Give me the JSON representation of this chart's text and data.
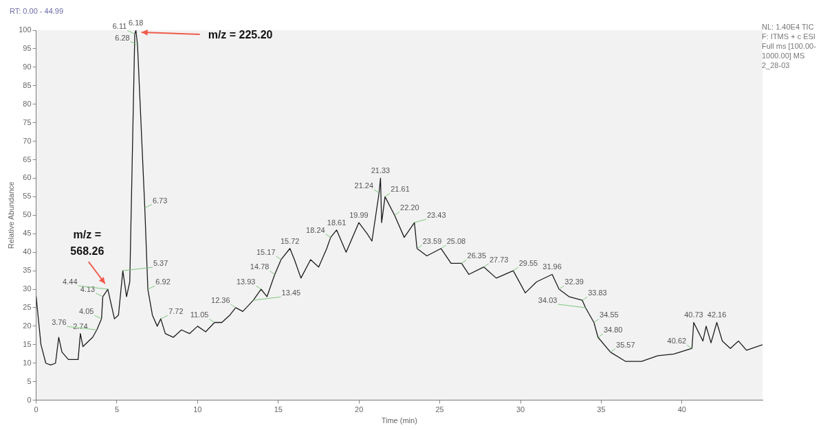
{
  "chart_data": {
    "type": "line",
    "xlabel": "Time (min)",
    "ylabel": "Relative Abundance",
    "xlim": [
      0,
      44.99
    ],
    "xticks": [
      0,
      5,
      10,
      15,
      20,
      25,
      30,
      35,
      40
    ],
    "ylim": [
      0,
      100
    ],
    "yticks": [
      0,
      5,
      10,
      15,
      20,
      25,
      30,
      35,
      40,
      45,
      50,
      55,
      60,
      65,
      70,
      75,
      80,
      85,
      90,
      95,
      100
    ],
    "grid": false,
    "legend": false,
    "marker": "none",
    "line_style": "solid",
    "series": [
      {
        "color": "#1a1a1a",
        "x": [
          0,
          0.3,
          0.6,
          0.9,
          1.2,
          1.4,
          1.6,
          2.0,
          2.6,
          2.74,
          2.9,
          3.5,
          3.76,
          4.05,
          4.13,
          4.44,
          4.85,
          5.1,
          5.37,
          5.6,
          5.8,
          6.11,
          6.18,
          6.28,
          6.73,
          6.92,
          7.2,
          7.5,
          7.72,
          8.0,
          8.5,
          9.0,
          9.5,
          10.0,
          10.5,
          11.05,
          11.5,
          12.0,
          12.36,
          12.8,
          13.45,
          13.93,
          14.3,
          14.78,
          15.17,
          15.72,
          16.0,
          16.4,
          17.0,
          17.5,
          18.0,
          18.24,
          18.61,
          19.2,
          19.99,
          20.5,
          20.8,
          21.24,
          21.33,
          21.4,
          21.61,
          22.2,
          22.8,
          23.43,
          23.59,
          24.2,
          25.08,
          25.7,
          26.35,
          26.8,
          27.73,
          28.5,
          29.55,
          30.3,
          31.0,
          31.96,
          32.39,
          33.0,
          33.83,
          34.03,
          34.55,
          34.8,
          35.57,
          36.5,
          37.5,
          38.5,
          39.5,
          40.62,
          40.73,
          41.3,
          41.5,
          41.8,
          42.16,
          42.5,
          43.0,
          43.5,
          44.0,
          44.99
        ],
        "values": [
          28,
          15,
          10,
          9.5,
          10,
          17,
          13,
          11,
          11,
          18,
          14.5,
          17,
          19,
          22,
          28,
          30,
          22,
          23,
          35,
          28,
          32,
          99,
          100,
          96,
          52,
          30,
          23,
          20,
          22,
          18,
          17,
          19,
          18,
          20,
          18.5,
          21,
          21,
          23,
          25,
          24,
          27,
          30,
          28,
          34,
          38,
          41,
          38,
          33,
          38,
          36,
          41,
          44,
          46,
          40,
          48,
          45,
          43,
          56,
          60,
          48,
          55,
          50,
          44,
          48,
          41,
          39,
          41,
          37,
          37,
          34,
          36,
          33,
          35,
          29,
          32,
          34,
          30,
          28,
          27,
          25,
          21,
          17,
          13,
          10.5,
          10.5,
          12,
          12.5,
          14,
          21,
          16,
          20,
          15.5,
          21,
          16,
          14,
          16,
          13.5,
          15
        ]
      }
    ],
    "annotations": [
      "RT: 0.00 - 44.99",
      "NL: 1.40E4 TIC F: ITMS + c ESI Full ms [100.00-1000.00] MS 2_28-03",
      {
        "text": "m/z = 225.20",
        "x": 6.18,
        "y": 100
      },
      {
        "text": "m/z = 568.26",
        "x": 4.44,
        "y": 30
      },
      {
        "text": "2.74",
        "x": 2.74,
        "y": 18
      },
      {
        "text": "3.76",
        "x": 3.76,
        "y": 19
      },
      {
        "text": "4.05",
        "x": 4.05,
        "y": 22
      },
      {
        "text": "4.13",
        "x": 4.13,
        "y": 28
      },
      {
        "text": "4.44",
        "x": 4.44,
        "y": 30
      },
      {
        "text": "5.37",
        "x": 5.37,
        "y": 35
      },
      {
        "text": "6.11",
        "x": 6.11,
        "y": 99
      },
      {
        "text": "6.18",
        "x": 6.18,
        "y": 100
      },
      {
        "text": "6.28",
        "x": 6.28,
        "y": 96
      },
      {
        "text": "6.73",
        "x": 6.73,
        "y": 52
      },
      {
        "text": "6.92",
        "x": 6.92,
        "y": 30
      },
      {
        "text": "7.72",
        "x": 7.72,
        "y": 22
      },
      {
        "text": "11.05",
        "x": 11.05,
        "y": 21
      },
      {
        "text": "12.36",
        "x": 12.36,
        "y": 25
      },
      {
        "text": "13.45",
        "x": 13.45,
        "y": 27
      },
      {
        "text": "13.93",
        "x": 13.93,
        "y": 30
      },
      {
        "text": "14.78",
        "x": 14.78,
        "y": 34
      },
      {
        "text": "15.17",
        "x": 15.17,
        "y": 38
      },
      {
        "text": "15.72",
        "x": 15.72,
        "y": 41
      },
      {
        "text": "18.24",
        "x": 18.24,
        "y": 44
      },
      {
        "text": "18.61",
        "x": 18.61,
        "y": 46
      },
      {
        "text": "19.99",
        "x": 19.99,
        "y": 48
      },
      {
        "text": "21.24",
        "x": 21.24,
        "y": 56
      },
      {
        "text": "21.33",
        "x": 21.33,
        "y": 60
      },
      {
        "text": "21.61",
        "x": 21.61,
        "y": 55
      },
      {
        "text": "22.20",
        "x": 22.2,
        "y": 50
      },
      {
        "text": "23.43",
        "x": 23.43,
        "y": 48
      },
      {
        "text": "23.59",
        "x": 23.59,
        "y": 41
      },
      {
        "text": "25.08",
        "x": 25.08,
        "y": 41
      },
      {
        "text": "26.35",
        "x": 26.35,
        "y": 37
      },
      {
        "text": "27.73",
        "x": 27.73,
        "y": 36
      },
      {
        "text": "29.55",
        "x": 29.55,
        "y": 35
      },
      {
        "text": "31.96",
        "x": 31.96,
        "y": 34
      },
      {
        "text": "32.39",
        "x": 32.39,
        "y": 30
      },
      {
        "text": "33.83",
        "x": 33.83,
        "y": 27
      },
      {
        "text": "34.03",
        "x": 34.03,
        "y": 25
      },
      {
        "text": "34.55",
        "x": 34.55,
        "y": 21
      },
      {
        "text": "34.80",
        "x": 34.8,
        "y": 17
      },
      {
        "text": "35.57",
        "x": 35.57,
        "y": 13
      },
      {
        "text": "40.62",
        "x": 40.62,
        "y": 14
      },
      {
        "text": "40.73",
        "x": 40.73,
        "y": 21
      },
      {
        "text": "42.16",
        "x": 42.16,
        "y": 21
      }
    ]
  }
}
